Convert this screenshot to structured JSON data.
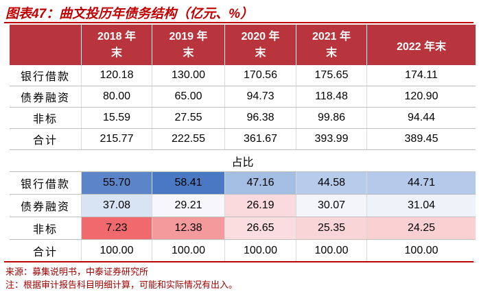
{
  "title": "图表47：曲文投历年债务结构（亿元、%）",
  "table": {
    "header": [
      "2018 年末",
      "2019 年末",
      "2020 年末",
      "2021 年末",
      "2022 年末"
    ],
    "rows": [
      [
        "银行借款",
        "120.18",
        "130.00",
        "170.56",
        "175.65",
        "174.11"
      ],
      [
        "债券融资",
        "80.00",
        "65.00",
        "94.73",
        "118.48",
        "120.90"
      ],
      [
        "非标",
        "15.59",
        "27.55",
        "96.38",
        "99.86",
        "94.44"
      ],
      [
        "合计",
        "215.77",
        "222.55",
        "361.67",
        "393.99",
        "389.45"
      ]
    ]
  },
  "section_label": "占比",
  "share_table": {
    "rows": [
      [
        "银行借款",
        "55.70",
        "58.41",
        "47.16",
        "44.58",
        "44.71"
      ],
      [
        "债券融资",
        "37.08",
        "29.21",
        "26.19",
        "30.07",
        "31.04"
      ],
      [
        "非标",
        "7.23",
        "12.38",
        "26.65",
        "25.35",
        "24.25"
      ],
      [
        "合计",
        "100.00",
        "100.00",
        "100.00",
        "100.00",
        "100.00"
      ]
    ],
    "colors": [
      [
        "#5b85c8",
        "#4a78c2",
        "#a3bde3",
        "#b7cbea",
        "#b5caea"
      ],
      [
        "#d8e3f3",
        "#f7f7fb",
        "#fadadd",
        "#f4f5fa",
        "#f0f2f9"
      ],
      [
        "#f06a6d",
        "#f59a9c",
        "#fbdcdf",
        "#fad5d8",
        "#fad0d3"
      ]
    ]
  },
  "notes": [
    "来源：募集说明书，中泰证券研究所",
    "注：根据审计报告科目明细计算，可能和实际情况有出入。"
  ]
}
